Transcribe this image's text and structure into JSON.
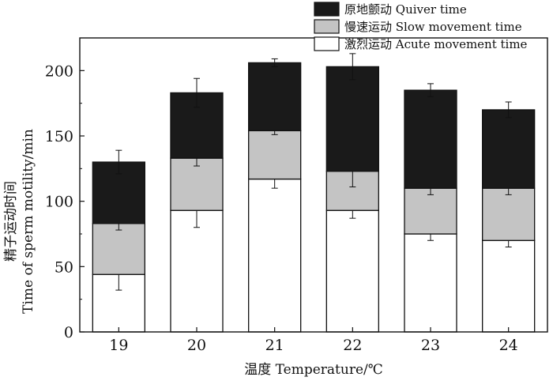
{
  "chart_data": {
    "type": "bar",
    "stacked": true,
    "categories": [
      "19",
      "20",
      "21",
      "22",
      "23",
      "24"
    ],
    "series": [
      {
        "name": "激烈运动 Acute movement time",
        "values": [
          44,
          93,
          117,
          93,
          75,
          70
        ],
        "errors": [
          12,
          13,
          7,
          6,
          5,
          5
        ],
        "color": "#ffffff"
      },
      {
        "name": "慢速运动 Slow movement time",
        "values": [
          39,
          40,
          37,
          30,
          35,
          40
        ],
        "errors": [
          5,
          6,
          3,
          12,
          5,
          5
        ],
        "color": "#c4c4c4"
      },
      {
        "name": "原地颤动 Quiver time",
        "values": [
          47,
          50,
          52,
          80,
          75,
          60
        ],
        "errors": [
          9,
          11,
          3,
          10,
          5,
          6
        ],
        "color": "#1a1a1a"
      }
    ],
    "xlabel": "温度 Temperature/℃",
    "ylabel_line1": "精子运动时间",
    "ylabel_line2": "Time of sperm motility/min",
    "yticks": [
      0,
      50,
      100,
      150,
      200
    ],
    "ylim": [
      0,
      225
    ],
    "grid": false,
    "legend_position": "top-right"
  }
}
